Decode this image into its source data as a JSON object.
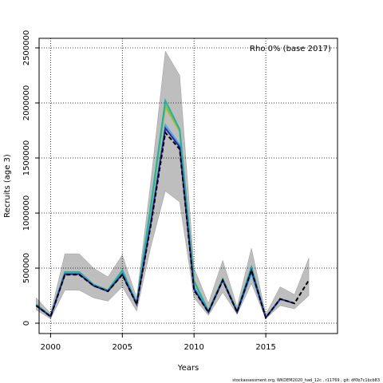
{
  "chart_data": {
    "type": "line",
    "annotation": "Rho 0% (base 2017)",
    "xlabel": "Years",
    "ylabel": "Recruits (age 3)",
    "footer": "stockassessment.org, WKDEM2020_had_12c , r11769 , git: df0b7c1bcb83",
    "x": [
      1999,
      2000,
      2001,
      2002,
      2003,
      2004,
      2005,
      2006,
      2007,
      2008,
      2009,
      2010,
      2011,
      2012,
      2013,
      2014,
      2015,
      2016,
      2017,
      2018
    ],
    "band": {
      "color": "#bebebe",
      "upper": [
        230000,
        90000,
        630000,
        630000,
        500000,
        420000,
        620000,
        230000,
        1300000,
        2470000,
        2250000,
        500000,
        180000,
        570000,
        150000,
        680000,
        80000,
        330000,
        260000,
        590000
      ],
      "lower": [
        120000,
        40000,
        300000,
        300000,
        230000,
        200000,
        330000,
        110000,
        700000,
        1200000,
        1100000,
        230000,
        70000,
        280000,
        80000,
        360000,
        40000,
        160000,
        130000,
        250000
      ]
    },
    "series": [
      {
        "color": "#c8b43c",
        "values": [
          160000,
          60000,
          450000,
          450000,
          350000,
          290000,
          460000,
          180000,
          1050000,
          1960000,
          1740000,
          380000,
          110000,
          400000,
          110000,
          null,
          null,
          null,
          null,
          null
        ]
      },
      {
        "color": "#7cc444",
        "values": [
          165000,
          62000,
          460000,
          460000,
          350000,
          295000,
          470000,
          180000,
          1060000,
          1980000,
          1750000,
          390000,
          110000,
          400000,
          110000,
          500000,
          null,
          null,
          null,
          null
        ]
      },
      {
        "color": "#22b0a0",
        "values": [
          170000,
          64000,
          465000,
          465000,
          350000,
          300000,
          480000,
          185000,
          1080000,
          2020000,
          1760000,
          380000,
          110000,
          400000,
          110000,
          510000,
          50000,
          null,
          null,
          null
        ]
      },
      {
        "color": "#50a8e0",
        "values": [
          160000,
          60000,
          450000,
          450000,
          345000,
          290000,
          450000,
          175000,
          950000,
          1800000,
          1620000,
          330000,
          100000,
          390000,
          100000,
          450000,
          50000,
          210000,
          null,
          null
        ]
      },
      {
        "color": "#2828a0",
        "values": [
          160000,
          60000,
          445000,
          445000,
          340000,
          290000,
          445000,
          172000,
          920000,
          1770000,
          1600000,
          310000,
          100000,
          390000,
          100000,
          480000,
          50000,
          220000,
          180000,
          null
        ]
      },
      {
        "color": "#000000",
        "dashed": true,
        "values": [
          160000,
          60000,
          440000,
          440000,
          340000,
          290000,
          440000,
          170000,
          900000,
          1730000,
          1580000,
          300000,
          100000,
          390000,
          100000,
          480000,
          50000,
          220000,
          180000,
          390000
        ]
      }
    ],
    "xlim": [
      1999.2,
      2020
    ],
    "ylim": [
      -94000,
      2587000
    ],
    "xticks": [
      2000,
      2005,
      2010,
      2015
    ],
    "yticks": [
      0,
      500000,
      1000000,
      1500000,
      2000000,
      2500000
    ],
    "grid": true
  }
}
